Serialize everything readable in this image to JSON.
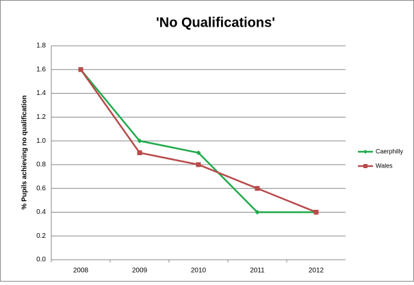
{
  "chart_data": {
    "type": "line",
    "title": "'No Qualifications'",
    "y_label": "% Pupils achieving no qualification",
    "categories": [
      "2008",
      "2009",
      "2010",
      "2011",
      "2012"
    ],
    "series": [
      {
        "name": "Caerphilly",
        "color": "#1faa4a",
        "values": [
          1.6,
          1.0,
          0.9,
          0.4,
          0.4
        ]
      },
      {
        "name": "Wales",
        "color": "#b84a4a",
        "values": [
          1.6,
          0.9,
          0.8,
          0.6,
          0.4
        ]
      }
    ],
    "ylim": [
      0,
      1.8
    ],
    "yticks": [
      {
        "value": 0,
        "label": "0.0"
      },
      0.2,
      0.4,
      0.6,
      0.8,
      {
        "value": 1,
        "label": "1.0"
      },
      1.2,
      1.4,
      1.6,
      1.8
    ],
    "grid": true,
    "legend": "right"
  }
}
